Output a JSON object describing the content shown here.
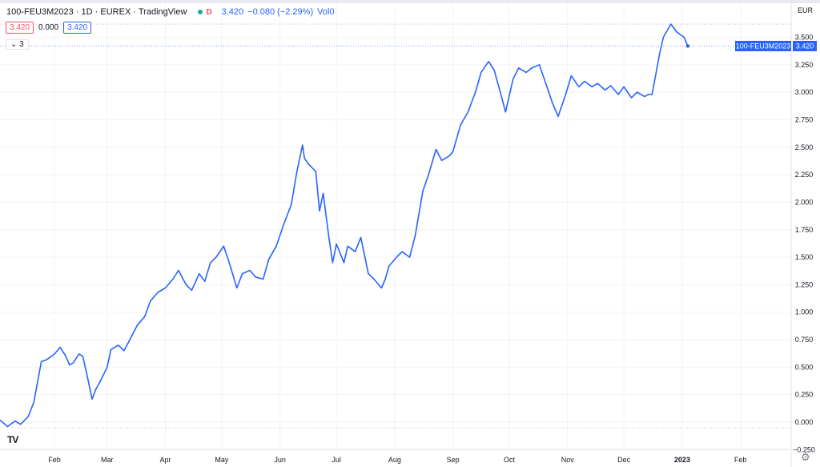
{
  "header": {
    "symbol_line": "100-FEU3M2023 · 1D · EUREX · TradingView",
    "interval_badge": "D",
    "last_price": "3.420",
    "change": "−0.080 (−2.29%)",
    "volume": "Vol0"
  },
  "price_boxes": {
    "bid": "3.420",
    "spread": "0.000",
    "ask": "3.420"
  },
  "indicator_toggle": "3",
  "logo_text": "TV",
  "icons": {
    "settings": "gear-icon",
    "logo": "tradingview-logo-icon",
    "toggle": "chevron-down-icon"
  },
  "colors": {
    "line": "#2962ff",
    "label_bg": "#2962ff",
    "grid": "#f0f3fa",
    "axis_text": "#131722",
    "status_dot": "#26a69a"
  },
  "chart_data": {
    "type": "line",
    "currency": "EUR",
    "last_label": {
      "symbol": "100-FEU3M2023",
      "value": "3.420"
    },
    "ylim": [
      -0.25,
      3.5
    ],
    "y_ticks": [
      {
        "v": 3.5,
        "l": "3.500"
      },
      {
        "v": 3.25,
        "l": "3.250"
      },
      {
        "v": 3.0,
        "l": "3.000"
      },
      {
        "v": 2.75,
        "l": "2.750"
      },
      {
        "v": 2.5,
        "l": "2.500"
      },
      {
        "v": 2.25,
        "l": "2.250"
      },
      {
        "v": 2.0,
        "l": "2.000"
      },
      {
        "v": 1.75,
        "l": "1.750"
      },
      {
        "v": 1.5,
        "l": "1.500"
      },
      {
        "v": 1.25,
        "l": "1.250"
      },
      {
        "v": 1.0,
        "l": "1.000"
      },
      {
        "v": 0.75,
        "l": "0.750"
      },
      {
        "v": 0.5,
        "l": "0.500"
      },
      {
        "v": 0.25,
        "l": "0.250"
      },
      {
        "v": 0.0,
        "l": "0.000"
      },
      {
        "v": -0.25,
        "l": "−0.250"
      }
    ],
    "x_ticks": [
      {
        "d": "2022-02-01",
        "l": "Feb"
      },
      {
        "d": "2022-03-01",
        "l": "Mar"
      },
      {
        "d": "2022-04-01",
        "l": "Apr"
      },
      {
        "d": "2022-05-01",
        "l": "May"
      },
      {
        "d": "2022-06-01",
        "l": "Jun"
      },
      {
        "d": "2022-07-01",
        "l": "Jul"
      },
      {
        "d": "2022-08-01",
        "l": "Aug"
      },
      {
        "d": "2022-09-01",
        "l": "Sep"
      },
      {
        "d": "2022-10-01",
        "l": "Oct"
      },
      {
        "d": "2022-11-01",
        "l": "Nov"
      },
      {
        "d": "2022-12-01",
        "l": "Dec"
      },
      {
        "d": "2023-01-01",
        "l": "2023",
        "bold": true
      },
      {
        "d": "2023-02-01",
        "l": "Feb"
      }
    ],
    "xlim": [
      "2022-01-03",
      "2023-02-28"
    ],
    "series": [
      {
        "x": [
          "2022-01-03",
          "2022-01-07",
          "2022-01-11",
          "2022-01-14",
          "2022-01-18",
          "2022-01-21",
          "2022-01-25",
          "2022-01-28",
          "2022-02-01",
          "2022-02-04",
          "2022-02-07",
          "2022-02-09",
          "2022-02-11",
          "2022-02-14",
          "2022-02-16",
          "2022-02-18",
          "2022-02-21",
          "2022-02-23",
          "2022-02-25",
          "2022-03-01",
          "2022-03-03",
          "2022-03-07",
          "2022-03-10",
          "2022-03-14",
          "2022-03-17",
          "2022-03-21",
          "2022-03-24",
          "2022-03-28",
          "2022-04-01",
          "2022-04-05",
          "2022-04-08",
          "2022-04-12",
          "2022-04-15",
          "2022-04-19",
          "2022-04-22",
          "2022-04-25",
          "2022-04-28",
          "2022-05-02",
          "2022-05-05",
          "2022-05-09",
          "2022-05-12",
          "2022-05-16",
          "2022-05-19",
          "2022-05-23",
          "2022-05-26",
          "2022-05-30",
          "2022-06-03",
          "2022-06-07",
          "2022-06-10",
          "2022-06-13",
          "2022-06-14",
          "2022-06-16",
          "2022-06-20",
          "2022-06-22",
          "2022-06-24",
          "2022-06-27",
          "2022-06-29",
          "2022-07-01",
          "2022-07-05",
          "2022-07-07",
          "2022-07-11",
          "2022-07-14",
          "2022-07-18",
          "2022-07-21",
          "2022-07-25",
          "2022-07-27",
          "2022-07-29",
          "2022-08-02",
          "2022-08-05",
          "2022-08-09",
          "2022-08-12",
          "2022-08-16",
          "2022-08-19",
          "2022-08-23",
          "2022-08-26",
          "2022-08-30",
          "2022-09-01",
          "2022-09-05",
          "2022-09-09",
          "2022-09-13",
          "2022-09-16",
          "2022-09-20",
          "2022-09-23",
          "2022-09-27",
          "2022-09-29",
          "2022-10-03",
          "2022-10-06",
          "2022-10-10",
          "2022-10-13",
          "2022-10-17",
          "2022-10-20",
          "2022-10-24",
          "2022-10-27",
          "2022-10-31",
          "2022-11-03",
          "2022-11-07",
          "2022-11-10",
          "2022-11-14",
          "2022-11-17",
          "2022-11-21",
          "2022-11-24",
          "2022-11-28",
          "2022-12-01",
          "2022-12-05",
          "2022-12-08",
          "2022-12-12",
          "2022-12-14",
          "2022-12-16",
          "2022-12-20",
          "2022-12-22",
          "2022-12-26",
          "2022-12-29",
          "2023-01-02",
          "2023-01-04"
        ],
        "y": [
          0.02,
          -0.04,
          0.01,
          -0.02,
          0.05,
          0.18,
          0.55,
          0.57,
          0.62,
          0.68,
          0.6,
          0.52,
          0.54,
          0.62,
          0.6,
          0.45,
          0.21,
          0.3,
          0.36,
          0.5,
          0.66,
          0.7,
          0.65,
          0.78,
          0.88,
          0.96,
          1.1,
          1.18,
          1.22,
          1.3,
          1.38,
          1.25,
          1.2,
          1.35,
          1.28,
          1.45,
          1.5,
          1.6,
          1.45,
          1.22,
          1.35,
          1.38,
          1.32,
          1.3,
          1.48,
          1.6,
          1.8,
          1.98,
          2.28,
          2.52,
          2.4,
          2.35,
          2.28,
          1.92,
          2.08,
          1.68,
          1.45,
          1.62,
          1.45,
          1.6,
          1.55,
          1.68,
          1.35,
          1.3,
          1.22,
          1.3,
          1.42,
          1.5,
          1.55,
          1.5,
          1.7,
          2.1,
          2.25,
          2.48,
          2.38,
          2.42,
          2.46,
          2.7,
          2.82,
          3.0,
          3.18,
          3.28,
          3.2,
          2.95,
          2.82,
          3.12,
          3.22,
          3.18,
          3.22,
          3.25,
          3.1,
          2.9,
          2.78,
          2.98,
          3.15,
          3.05,
          3.1,
          3.05,
          3.08,
          3.02,
          3.06,
          2.98,
          3.05,
          2.95,
          3.0,
          2.96,
          2.98,
          2.98,
          3.35,
          3.5,
          3.62,
          3.55,
          3.5,
          3.42
        ]
      }
    ]
  }
}
